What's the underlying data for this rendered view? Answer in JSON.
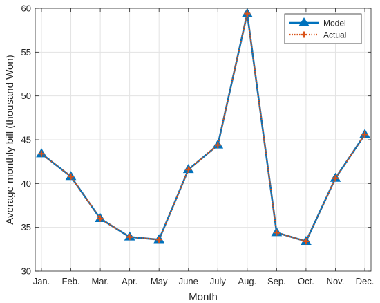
{
  "chart_data": {
    "type": "line",
    "title": "",
    "xlabel": "Month",
    "ylabel": "Average monthly bill (thousand Won)",
    "categories": [
      "Jan.",
      "Feb.",
      "Mar.",
      "Apr.",
      "May",
      "June",
      "July",
      "Aug.",
      "Sep.",
      "Oct.",
      "Nov.",
      "Dec."
    ],
    "ylim": [
      30,
      60
    ],
    "yticks": [
      30,
      35,
      40,
      45,
      50,
      55,
      60
    ],
    "grid": true,
    "legend_position": "top-right",
    "series": [
      {
        "name": "Model",
        "color": "#0072bd",
        "line_style": "solid",
        "marker": "triangle",
        "values": [
          43.4,
          40.8,
          36.0,
          33.9,
          33.6,
          41.6,
          44.4,
          59.4,
          34.4,
          33.4,
          40.6,
          45.6
        ]
      },
      {
        "name": "Actual",
        "color": "#d95319",
        "line_style": "dotted",
        "marker": "plus",
        "values": [
          43.4,
          40.8,
          36.0,
          33.9,
          33.6,
          41.6,
          44.4,
          59.4,
          34.4,
          33.4,
          40.6,
          45.6
        ]
      }
    ]
  }
}
